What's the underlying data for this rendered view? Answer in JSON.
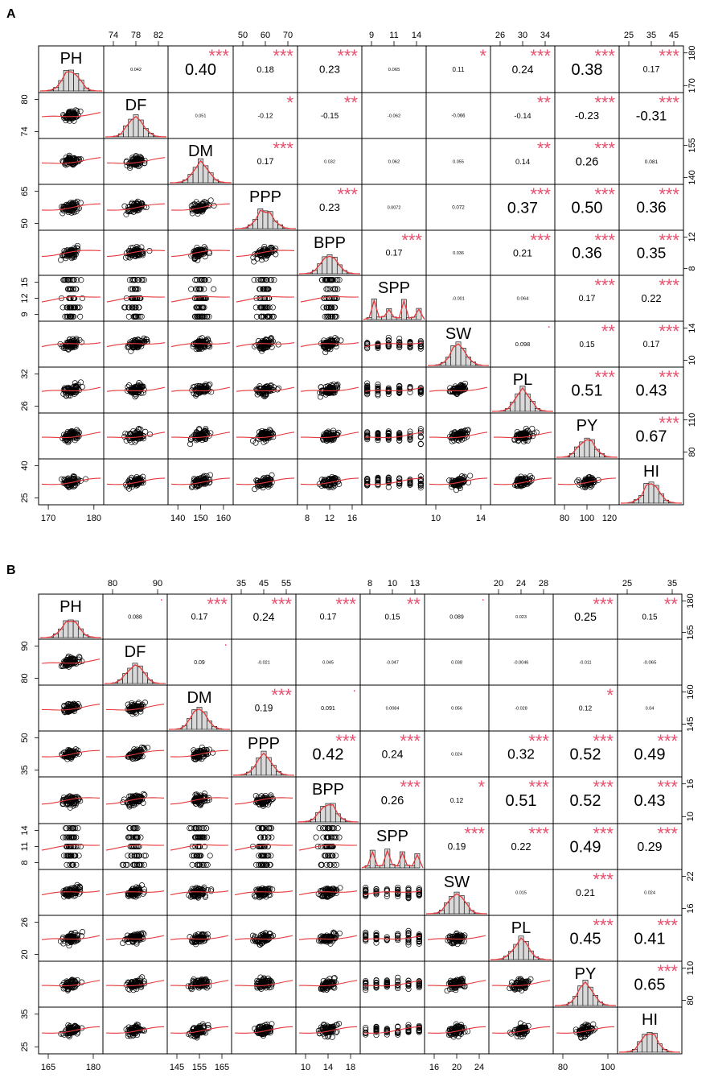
{
  "panels": [
    {
      "panel_label": "A",
      "variables": [
        "PH",
        "DF",
        "DM",
        "PPP",
        "BPP",
        "SPP",
        "SW",
        "PL",
        "PY",
        "HI"
      ],
      "top_ticks": [
        null,
        [
          "74",
          "78",
          "82"
        ],
        null,
        [
          "50",
          "60",
          "70"
        ],
        null,
        [
          "9",
          "11",
          "14"
        ],
        null,
        [
          "26",
          "30",
          "34"
        ],
        null,
        [
          "25",
          "35",
          "45"
        ]
      ],
      "bottom_ticks": [
        [
          "170",
          "180"
        ],
        null,
        [
          "140",
          "150",
          "160"
        ],
        null,
        [
          "8",
          "12",
          "16"
        ],
        null,
        [
          "10",
          "14"
        ],
        null,
        [
          "80",
          "100",
          "120"
        ],
        null
      ],
      "left_ticks": [
        null,
        [
          "80",
          "74"
        ],
        null,
        [
          "65",
          "50"
        ],
        null,
        [
          "15",
          "12",
          "9"
        ],
        null,
        [
          "32",
          "26"
        ],
        null,
        [
          "40",
          "25"
        ]
      ],
      "right_ticks": [
        [
          "180",
          "170"
        ],
        null,
        [
          "155",
          "140"
        ],
        null,
        [
          "12",
          "8"
        ],
        null,
        [
          "14",
          "10"
        ],
        null,
        [
          "110",
          "80"
        ],
        null
      ],
      "correlations": [
        {
          "row": 1,
          "col": 2,
          "r": "0.042",
          "sig": ""
        },
        {
          "row": 1,
          "col": 3,
          "r": "0.40",
          "sig": "***"
        },
        {
          "row": 1,
          "col": 4,
          "r": "0.18",
          "sig": "***"
        },
        {
          "row": 1,
          "col": 5,
          "r": "0.23",
          "sig": "***"
        },
        {
          "row": 1,
          "col": 6,
          "r": "0.065",
          "sig": ""
        },
        {
          "row": 1,
          "col": 7,
          "r": "0.11",
          "sig": "*"
        },
        {
          "row": 1,
          "col": 8,
          "r": "0.24",
          "sig": "***"
        },
        {
          "row": 1,
          "col": 9,
          "r": "0.38",
          "sig": "***"
        },
        {
          "row": 1,
          "col": 10,
          "r": "0.17",
          "sig": "***"
        },
        {
          "row": 2,
          "col": 3,
          "r": "0.051",
          "sig": ""
        },
        {
          "row": 2,
          "col": 4,
          "r": "-0.12",
          "sig": "*"
        },
        {
          "row": 2,
          "col": 5,
          "r": "-0.15",
          "sig": "**"
        },
        {
          "row": 2,
          "col": 6,
          "r": "-0.062",
          "sig": ""
        },
        {
          "row": 2,
          "col": 7,
          "r": "-0.066",
          "sig": ""
        },
        {
          "row": 2,
          "col": 8,
          "r": "-0.14",
          "sig": "**"
        },
        {
          "row": 2,
          "col": 9,
          "r": "-0.23",
          "sig": "***"
        },
        {
          "row": 2,
          "col": 10,
          "r": "-0.31",
          "sig": "***"
        },
        {
          "row": 3,
          "col": 4,
          "r": "0.17",
          "sig": "***"
        },
        {
          "row": 3,
          "col": 5,
          "r": "0.032",
          "sig": ""
        },
        {
          "row": 3,
          "col": 6,
          "r": "0.062",
          "sig": ""
        },
        {
          "row": 3,
          "col": 7,
          "r": "0.055",
          "sig": ""
        },
        {
          "row": 3,
          "col": 8,
          "r": "0.14",
          "sig": "**"
        },
        {
          "row": 3,
          "col": 9,
          "r": "0.26",
          "sig": "***"
        },
        {
          "row": 3,
          "col": 10,
          "r": "0.081",
          "sig": ""
        },
        {
          "row": 4,
          "col": 5,
          "r": "0.23",
          "sig": "***"
        },
        {
          "row": 4,
          "col": 6,
          "r": "0.0072",
          "sig": ""
        },
        {
          "row": 4,
          "col": 7,
          "r": "0.072",
          "sig": ""
        },
        {
          "row": 4,
          "col": 8,
          "r": "0.37",
          "sig": "***"
        },
        {
          "row": 4,
          "col": 9,
          "r": "0.50",
          "sig": "***"
        },
        {
          "row": 4,
          "col": 10,
          "r": "0.36",
          "sig": "***"
        },
        {
          "row": 5,
          "col": 6,
          "r": "0.17",
          "sig": "***"
        },
        {
          "row": 5,
          "col": 7,
          "r": "0.036",
          "sig": ""
        },
        {
          "row": 5,
          "col": 8,
          "r": "0.21",
          "sig": "***"
        },
        {
          "row": 5,
          "col": 9,
          "r": "0.36",
          "sig": "***"
        },
        {
          "row": 5,
          "col": 10,
          "r": "0.35",
          "sig": "***"
        },
        {
          "row": 6,
          "col": 7,
          "r": "-0.001",
          "sig": ""
        },
        {
          "row": 6,
          "col": 8,
          "r": "0.064",
          "sig": ""
        },
        {
          "row": 6,
          "col": 9,
          "r": "0.17",
          "sig": "***"
        },
        {
          "row": 6,
          "col": 10,
          "r": "0.22",
          "sig": "***"
        },
        {
          "row": 7,
          "col": 8,
          "r": "0.098",
          "sig": "."
        },
        {
          "row": 7,
          "col": 9,
          "r": "0.15",
          "sig": "**"
        },
        {
          "row": 7,
          "col": 10,
          "r": "0.17",
          "sig": "***"
        },
        {
          "row": 8,
          "col": 9,
          "r": "0.51",
          "sig": "***"
        },
        {
          "row": 8,
          "col": 10,
          "r": "0.43",
          "sig": "***"
        },
        {
          "row": 9,
          "col": 10,
          "r": "0.67",
          "sig": "***"
        }
      ]
    },
    {
      "panel_label": "B",
      "variables": [
        "PH",
        "DF",
        "DM",
        "PPP",
        "BPP",
        "SPP",
        "SW",
        "PL",
        "PY",
        "HI"
      ],
      "top_ticks": [
        null,
        [
          "80",
          "90"
        ],
        null,
        [
          "35",
          "45",
          "55"
        ],
        null,
        [
          "8",
          "10",
          "13"
        ],
        null,
        [
          "20",
          "24",
          "28"
        ],
        null,
        [
          "25",
          "35"
        ]
      ],
      "bottom_ticks": [
        [
          "165",
          "180"
        ],
        null,
        [
          "145",
          "155",
          "165"
        ],
        null,
        [
          "10",
          "14",
          "18"
        ],
        null,
        [
          "16",
          "20",
          "24"
        ],
        null,
        [
          "80",
          "100"
        ],
        null
      ],
      "left_ticks": [
        null,
        [
          "90",
          "80"
        ],
        null,
        [
          "50",
          "35"
        ],
        null,
        [
          "14",
          "11",
          "8"
        ],
        null,
        [
          "26",
          "20"
        ],
        null,
        [
          "35",
          "25"
        ]
      ],
      "right_ticks": [
        [
          "180",
          "165"
        ],
        null,
        [
          "160",
          "145"
        ],
        null,
        [
          "16",
          "10"
        ],
        null,
        [
          "22",
          "16"
        ],
        null,
        [
          "110",
          "80"
        ],
        null
      ],
      "correlations": [
        {
          "row": 1,
          "col": 2,
          "r": "0.088",
          "sig": "."
        },
        {
          "row": 1,
          "col": 3,
          "r": "0.17",
          "sig": "***"
        },
        {
          "row": 1,
          "col": 4,
          "r": "0.24",
          "sig": "***"
        },
        {
          "row": 1,
          "col": 5,
          "r": "0.17",
          "sig": "***"
        },
        {
          "row": 1,
          "col": 6,
          "r": "0.15",
          "sig": "**"
        },
        {
          "row": 1,
          "col": 7,
          "r": "0.089",
          "sig": "."
        },
        {
          "row": 1,
          "col": 8,
          "r": "0.023",
          "sig": ""
        },
        {
          "row": 1,
          "col": 9,
          "r": "0.25",
          "sig": "***"
        },
        {
          "row": 1,
          "col": 10,
          "r": "0.15",
          "sig": "**"
        },
        {
          "row": 2,
          "col": 3,
          "r": "0.09",
          "sig": "."
        },
        {
          "row": 2,
          "col": 4,
          "r": "-0.021",
          "sig": ""
        },
        {
          "row": 2,
          "col": 5,
          "r": "0.045",
          "sig": ""
        },
        {
          "row": 2,
          "col": 6,
          "r": "-0.047",
          "sig": ""
        },
        {
          "row": 2,
          "col": 7,
          "r": "0.038",
          "sig": ""
        },
        {
          "row": 2,
          "col": 8,
          "r": "-0.0046",
          "sig": ""
        },
        {
          "row": 2,
          "col": 9,
          "r": "-0.011",
          "sig": ""
        },
        {
          "row": 2,
          "col": 10,
          "r": "-0.065",
          "sig": ""
        },
        {
          "row": 3,
          "col": 4,
          "r": "0.19",
          "sig": "***"
        },
        {
          "row": 3,
          "col": 5,
          "r": "0.091",
          "sig": "."
        },
        {
          "row": 3,
          "col": 6,
          "r": "0.0084",
          "sig": ""
        },
        {
          "row": 3,
          "col": 7,
          "r": "0.056",
          "sig": ""
        },
        {
          "row": 3,
          "col": 8,
          "r": "-0.028",
          "sig": ""
        },
        {
          "row": 3,
          "col": 9,
          "r": "0.12",
          "sig": "*"
        },
        {
          "row": 3,
          "col": 10,
          "r": "0.04",
          "sig": ""
        },
        {
          "row": 4,
          "col": 5,
          "r": "0.42",
          "sig": "***"
        },
        {
          "row": 4,
          "col": 6,
          "r": "0.24",
          "sig": "***"
        },
        {
          "row": 4,
          "col": 7,
          "r": "0.024",
          "sig": ""
        },
        {
          "row": 4,
          "col": 8,
          "r": "0.32",
          "sig": "***"
        },
        {
          "row": 4,
          "col": 9,
          "r": "0.52",
          "sig": "***"
        },
        {
          "row": 4,
          "col": 10,
          "r": "0.49",
          "sig": "***"
        },
        {
          "row": 5,
          "col": 6,
          "r": "0.26",
          "sig": "***"
        },
        {
          "row": 5,
          "col": 7,
          "r": "0.12",
          "sig": "*"
        },
        {
          "row": 5,
          "col": 8,
          "r": "0.51",
          "sig": "***"
        },
        {
          "row": 5,
          "col": 9,
          "r": "0.52",
          "sig": "***"
        },
        {
          "row": 5,
          "col": 10,
          "r": "0.43",
          "sig": "***"
        },
        {
          "row": 6,
          "col": 7,
          "r": "0.19",
          "sig": "***"
        },
        {
          "row": 6,
          "col": 8,
          "r": "0.22",
          "sig": "***"
        },
        {
          "row": 6,
          "col": 9,
          "r": "0.49",
          "sig": "***"
        },
        {
          "row": 6,
          "col": 10,
          "r": "0.29",
          "sig": "***"
        },
        {
          "row": 7,
          "col": 8,
          "r": "0.015",
          "sig": ""
        },
        {
          "row": 7,
          "col": 9,
          "r": "0.21",
          "sig": "***"
        },
        {
          "row": 7,
          "col": 10,
          "r": "0.024",
          "sig": ""
        },
        {
          "row": 8,
          "col": 9,
          "r": "0.45",
          "sig": "***"
        },
        {
          "row": 8,
          "col": 10,
          "r": "0.41",
          "sig": "***"
        },
        {
          "row": 9,
          "col": 10,
          "r": "0.65",
          "sig": "***"
        }
      ]
    }
  ],
  "colors": {
    "significance": "#e8506e",
    "smooth_line": "#e5383b",
    "histogram_fill": "#d9d9d9",
    "points": "#000000",
    "frame": "#000000"
  }
}
